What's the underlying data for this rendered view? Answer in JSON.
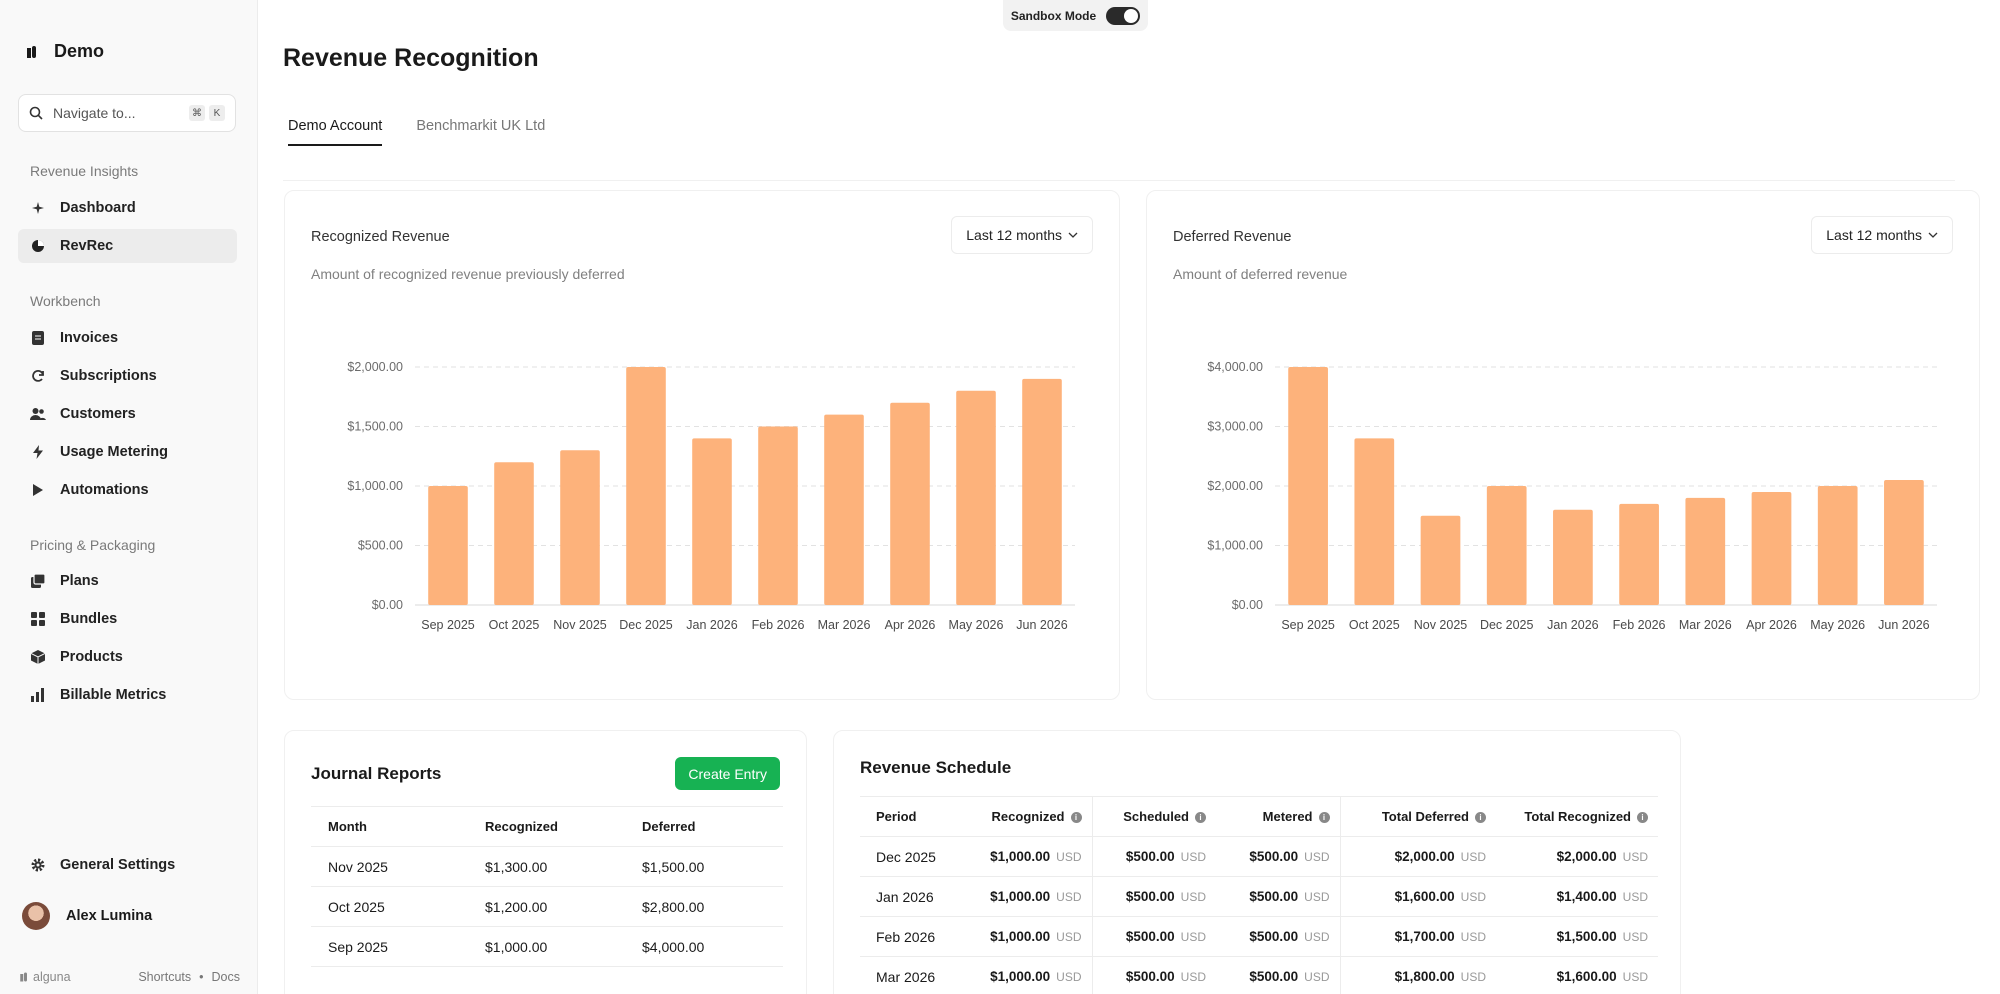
{
  "app": {
    "workspace": "Demo",
    "sandbox_label": "Sandbox Mode"
  },
  "search": {
    "placeholder": "Navigate to...",
    "key1": "⌘",
    "key2": "K"
  },
  "sidebar": {
    "sections": [
      {
        "title": "Revenue Insights",
        "items": [
          {
            "label": "Dashboard",
            "icon": "sparkle-icon"
          },
          {
            "label": "RevRec",
            "icon": "pie-chart-icon",
            "active": true
          }
        ]
      },
      {
        "title": "Workbench",
        "items": [
          {
            "label": "Invoices",
            "icon": "document-icon"
          },
          {
            "label": "Subscriptions",
            "icon": "refresh-icon"
          },
          {
            "label": "Customers",
            "icon": "users-icon"
          },
          {
            "label": "Usage Metering",
            "icon": "bolt-icon"
          },
          {
            "label": "Automations",
            "icon": "play-icon"
          }
        ]
      },
      {
        "title": "Pricing & Packaging",
        "items": [
          {
            "label": "Plans",
            "icon": "stack-icon"
          },
          {
            "label": "Bundles",
            "icon": "grid-icon"
          },
          {
            "label": "Products",
            "icon": "box-icon"
          },
          {
            "label": "Billable Metrics",
            "icon": "bar-chart-icon"
          }
        ]
      }
    ],
    "settings_label": "General Settings",
    "user_name": "Alex Lumina",
    "footer_brand": "alguna",
    "footer_shortcuts": "Shortcuts",
    "footer_dot": "•",
    "footer_docs": "Docs"
  },
  "page": {
    "title": "Revenue Recognition",
    "tabs": [
      {
        "label": "Demo Account",
        "active": true
      },
      {
        "label": "Benchmarkit UK Ltd"
      }
    ]
  },
  "recognized": {
    "title": "Recognized Revenue",
    "subtitle": "Amount of recognized revenue previously deferred",
    "range": "Last 12 months"
  },
  "deferred": {
    "title": "Deferred Revenue",
    "subtitle": "Amount of deferred revenue",
    "range": "Last 12 months"
  },
  "chart_data": [
    {
      "type": "bar",
      "title": "Recognized Revenue",
      "categories": [
        "Sep 2025",
        "Oct 2025",
        "Nov 2025",
        "Dec 2025",
        "Jan 2026",
        "Feb 2026",
        "Mar 2026",
        "Apr 2026",
        "May 2026",
        "Jun 2026"
      ],
      "values": [
        1000,
        1200,
        1300,
        2000,
        1400,
        1500,
        1600,
        1700,
        1800,
        1900
      ],
      "ylim": [
        0,
        2000
      ],
      "yticks": [
        0,
        500,
        1000,
        1500,
        2000
      ],
      "ytick_labels": [
        "$0.00",
        "$500.00",
        "$1,000.00",
        "$1,500.00",
        "$2,000.00"
      ],
      "color": "#fdb27b",
      "grid": true
    },
    {
      "type": "bar",
      "title": "Deferred Revenue",
      "categories": [
        "Sep 2025",
        "Oct 2025",
        "Nov 2025",
        "Dec 2025",
        "Jan 2026",
        "Feb 2026",
        "Mar 2026",
        "Apr 2026",
        "May 2026",
        "Jun 2026"
      ],
      "values": [
        4000,
        2800,
        1500,
        2000,
        1600,
        1700,
        1800,
        1900,
        2000,
        2100
      ],
      "ylim": [
        0,
        4000
      ],
      "yticks": [
        0,
        1000,
        2000,
        3000,
        4000
      ],
      "ytick_labels": [
        "$0.00",
        "$1,000.00",
        "$2,000.00",
        "$3,000.00",
        "$4,000.00"
      ],
      "color": "#fdb27b",
      "grid": true
    }
  ],
  "journal": {
    "title": "Journal Reports",
    "create_label": "Create Entry",
    "columns": [
      "Month",
      "Recognized",
      "Deferred"
    ],
    "rows": [
      [
        "Nov 2025",
        "$1,300.00",
        "$1,500.00"
      ],
      [
        "Oct 2025",
        "$1,200.00",
        "$2,800.00"
      ],
      [
        "Sep 2025",
        "$1,000.00",
        "$4,000.00"
      ]
    ]
  },
  "schedule": {
    "title": "Revenue Schedule",
    "columns": [
      "Period",
      "Recognized",
      "Scheduled",
      "Metered",
      "Total Deferred",
      "Total Recognized"
    ],
    "currency": "USD",
    "rows": [
      [
        "Dec 2025",
        "$1,000.00",
        "$500.00",
        "$500.00",
        "$2,000.00",
        "$2,000.00"
      ],
      [
        "Jan 2026",
        "$1,000.00",
        "$500.00",
        "$500.00",
        "$1,600.00",
        "$1,400.00"
      ],
      [
        "Feb 2026",
        "$1,000.00",
        "$500.00",
        "$500.00",
        "$1,700.00",
        "$1,500.00"
      ],
      [
        "Mar 2026",
        "$1,000.00",
        "$500.00",
        "$500.00",
        "$1,800.00",
        "$1,600.00"
      ]
    ]
  }
}
